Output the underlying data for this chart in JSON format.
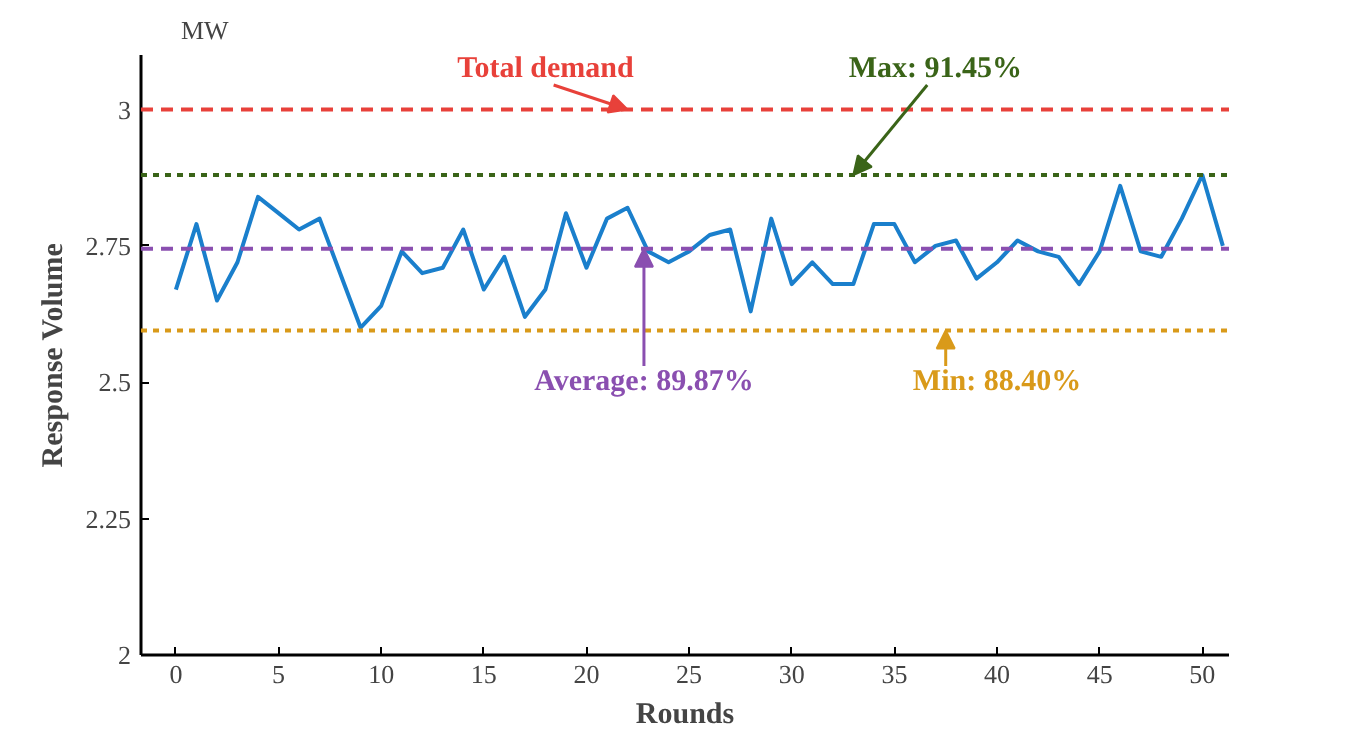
{
  "chart_data": {
    "type": "line",
    "xlabel": "Rounds",
    "ylabel": "Response Volume",
    "annotations": [
      "MW",
      {
        "text": "Total demand",
        "x": 22,
        "y": 3
      },
      {
        "text": "Max: 91.45%",
        "x": 33,
        "y": 2.88
      },
      {
        "text": "Average: 89.87%",
        "x": 22.8,
        "y": 2.745
      },
      {
        "text": "Min: 88.40%",
        "x": 37.5,
        "y": 2.595
      }
    ],
    "x": [
      0,
      1,
      2,
      3,
      4,
      5,
      6,
      7,
      8,
      9,
      10,
      11,
      12,
      13,
      14,
      15,
      16,
      17,
      18,
      19,
      20,
      21,
      22,
      23,
      24,
      25,
      26,
      27,
      28,
      29,
      30,
      31,
      32,
      33,
      34,
      35,
      36,
      37,
      38,
      39,
      40,
      41,
      42,
      43,
      44,
      45,
      46,
      47,
      48,
      49,
      50,
      51
    ],
    "series": [
      {
        "color": "#1a7fcc",
        "values": [
          2.67,
          2.79,
          2.65,
          2.72,
          2.84,
          2.81,
          2.78,
          2.8,
          2.7,
          2.6,
          2.64,
          2.74,
          2.7,
          2.71,
          2.78,
          2.67,
          2.73,
          2.62,
          2.67,
          2.81,
          2.71,
          2.8,
          2.82,
          2.74,
          2.72,
          2.74,
          2.77,
          2.78,
          2.63,
          2.8,
          2.68,
          2.72,
          2.68,
          2.68,
          2.79,
          2.79,
          2.72,
          2.75,
          2.76,
          2.69,
          2.72,
          2.76,
          2.74,
          2.73,
          2.68,
          2.74,
          2.86,
          2.74,
          2.73,
          2.8,
          2.88,
          2.75
        ]
      }
    ],
    "ref_lines": [
      {
        "axis": "y",
        "value": 3,
        "color": "#e8413a",
        "line_style": "dashed"
      },
      {
        "axis": "y",
        "value": 2.88,
        "color": "#3a6418",
        "line_style": "dotted"
      },
      {
        "axis": "y",
        "value": 2.745,
        "color": "#8a4fb0",
        "line_style": "dashed"
      },
      {
        "axis": "y",
        "value": 2.595,
        "color": "#d99a1a",
        "line_style": "dotted"
      }
    ],
    "xlim": [
      -1.7,
      51.3
    ],
    "ylim": [
      2,
      3.1
    ],
    "xticks": [
      0,
      5,
      10,
      15,
      20,
      25,
      30,
      35,
      40,
      45,
      50
    ],
    "yticks": [
      2,
      2.25,
      2.5,
      2.75,
      3
    ],
    "grid": false,
    "marker": "none",
    "line_style": "solid"
  }
}
